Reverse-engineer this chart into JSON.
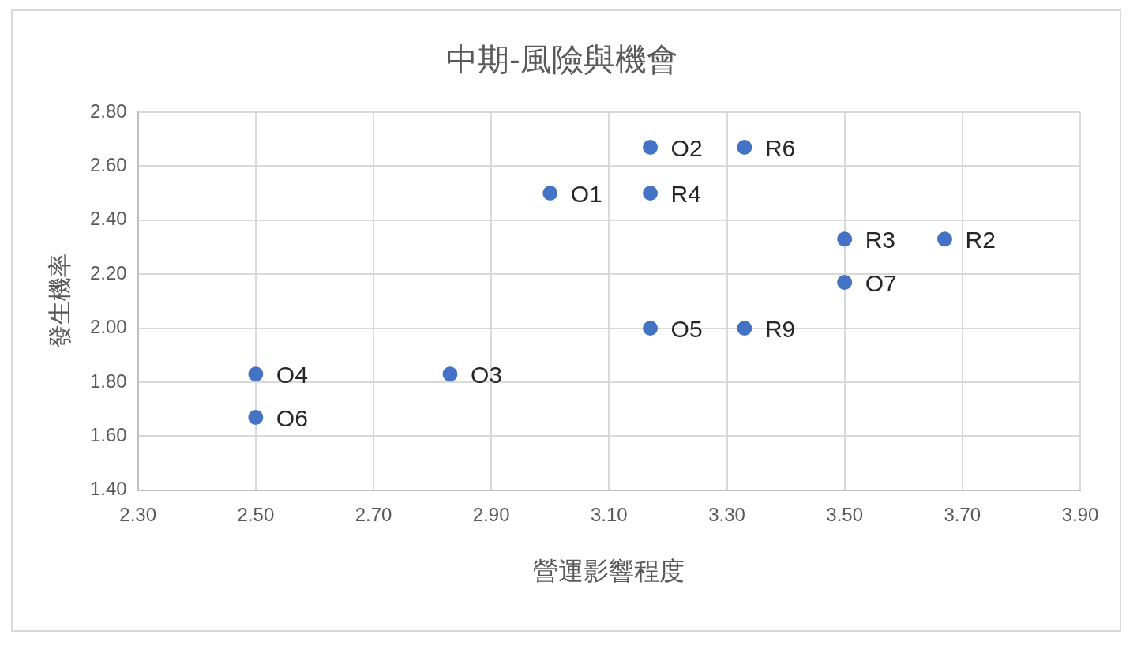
{
  "chart_data": {
    "type": "scatter",
    "title": "中期-風險與機會",
    "xlabel": "營運影響程度",
    "ylabel": "發生機率",
    "x": [
      3.17,
      3.33,
      3.0,
      3.17,
      3.5,
      3.67,
      3.5,
      3.17,
      3.33,
      2.83,
      2.5,
      2.5
    ],
    "series": [
      {
        "color": "#4472c4",
        "values": [
          2.67,
          2.67,
          2.5,
          2.5,
          2.33,
          2.33,
          2.17,
          2.0,
          2.0,
          1.83,
          1.83,
          1.67
        ],
        "value_labels": [
          "O2",
          "R6",
          "O1",
          "R4",
          "R3",
          "R2",
          "O7",
          "O5",
          "R9",
          "O3",
          "O4",
          "O6"
        ]
      }
    ],
    "xlim": [
      2.3,
      3.9
    ],
    "xticks": [
      {
        "value": 2.3,
        "label": "2.30"
      },
      {
        "value": 2.5,
        "label": "2.50"
      },
      {
        "value": 2.7,
        "label": "2.70"
      },
      {
        "value": 2.9,
        "label": "2.90"
      },
      {
        "value": 3.1,
        "label": "3.10"
      },
      {
        "value": 3.3,
        "label": "3.30"
      },
      {
        "value": 3.5,
        "label": "3.50"
      },
      {
        "value": 3.7,
        "label": "3.70"
      },
      {
        "value": 3.9,
        "label": "3.90"
      }
    ],
    "ylim": [
      1.4,
      2.8
    ],
    "yticks": [
      {
        "value": 1.4,
        "label": "1.40"
      },
      {
        "value": 1.6,
        "label": "1.60"
      },
      {
        "value": 1.8,
        "label": "1.80"
      },
      {
        "value": 2.0,
        "label": "2.00"
      },
      {
        "value": 2.2,
        "label": "2.20"
      },
      {
        "value": 2.4,
        "label": "2.40"
      },
      {
        "value": 2.6,
        "label": "2.60"
      },
      {
        "value": 2.8,
        "label": "2.80"
      }
    ],
    "grid": true,
    "legend": false,
    "marker": "circle"
  }
}
